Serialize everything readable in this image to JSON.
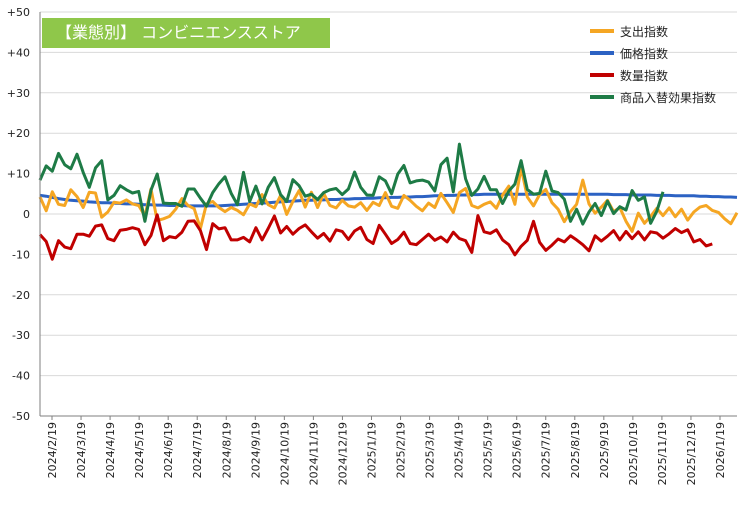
{
  "chart_data": {
    "type": "line",
    "title": "【業態別】 コンビニエンスストア",
    "xlabel": "",
    "ylabel": "",
    "ylim": [
      -50,
      50
    ],
    "y_ticks": [
      "+50",
      "+40",
      "+30",
      "+20",
      "+10",
      "0",
      "-10",
      "-20",
      "-30",
      "-40",
      "-50"
    ],
    "x_ticks": [
      "2024/2/19",
      "2024/3/19",
      "2024/4/19",
      "2024/5/19",
      "2024/6/19",
      "2024/7/19",
      "2024/8/19",
      "2024/9/19",
      "2024/10/19",
      "2024/11/19",
      "2024/12/19",
      "2025/1/19",
      "2025/2/19",
      "2025/3/19",
      "2025/4/19",
      "2025/5/19",
      "2025/6/19",
      "2025/7/19",
      "2025/8/19",
      "2025/9/19",
      "2025/10/19",
      "2025/11/19",
      "2025/12/19",
      "2026/1/19"
    ],
    "grid": true,
    "legend_position": "top-right",
    "series": [
      {
        "name": "支出指数",
        "color": "#f5a623",
        "values": [
          4.2,
          0.8,
          5.5,
          2.4,
          2.1,
          6.0,
          4.3,
          1.6,
          5.4,
          5.2,
          -0.8,
          0.5,
          2.9,
          2.7,
          3.5,
          2.5,
          2.1,
          -0.5,
          6.2,
          -1.6,
          -1.2,
          -0.6,
          1.2,
          3.8,
          2.1,
          1.3,
          -3.6,
          2.5,
          3.1,
          1.6,
          0.6,
          1.6,
          0.9,
          -0.2,
          2.5,
          1.8,
          4.8,
          2.3,
          1.5,
          4.6,
          -0.1,
          3.1,
          5.8,
          1.7,
          5.4,
          1.6,
          5.1,
          2.1,
          1.5,
          3.4,
          2.0,
          1.7,
          2.8,
          0.9,
          2.9,
          2.1,
          5.3,
          1.9,
          1.4,
          4.6,
          3.4,
          1.9,
          0.8,
          2.7,
          1.6,
          5.1,
          2.8,
          0.4,
          5.3,
          6.3,
          2.1,
          1.5,
          2.4,
          3.0,
          1.4,
          4.7,
          6.9,
          2.4,
          11.5,
          4.2,
          2.0,
          4.8,
          6.1,
          2.8,
          1.2,
          -1.9,
          0.6,
          2.4,
          8.4,
          2.5,
          0.2,
          1.7,
          3.4,
          0.6,
          1.6,
          -1.8,
          -4.3,
          0.2,
          -2.3,
          -0.6,
          1.4,
          -0.4,
          1.5,
          -0.7,
          1.2,
          -1.5,
          0.5,
          1.7,
          2.1,
          0.9,
          0.4,
          -1.2,
          -2.4,
          0.3
        ]
      },
      {
        "name": "価格指数",
        "color": "#2c62c3",
        "values": [
          4.6,
          4.4,
          4.1,
          3.8,
          3.6,
          3.4,
          3.3,
          3.2,
          3.0,
          2.9,
          2.8,
          2.8,
          2.7,
          2.6,
          2.5,
          2.5,
          2.4,
          2.3,
          2.3,
          2.2,
          2.2,
          2.1,
          2.1,
          2.1,
          2.0,
          2.0,
          2.0,
          2.0,
          2.0,
          2.0,
          2.1,
          2.2,
          2.3,
          2.4,
          2.5,
          2.6,
          2.7,
          2.8,
          2.9,
          3.0,
          3.1,
          3.2,
          3.3,
          3.4,
          3.4,
          3.5,
          3.5,
          3.6,
          3.6,
          3.7,
          3.7,
          3.8,
          3.8,
          3.9,
          3.9,
          4.0,
          4.0,
          4.1,
          4.1,
          4.2,
          4.2,
          4.3,
          4.3,
          4.4,
          4.5,
          4.5,
          4.6,
          4.6,
          4.7,
          4.7,
          4.8,
          4.8,
          4.9,
          4.9,
          4.9,
          4.9,
          4.9,
          4.9,
          4.9,
          4.9,
          4.9,
          4.9,
          4.9,
          4.9,
          4.9,
          4.9,
          4.9,
          4.9,
          4.9,
          4.9,
          4.9,
          4.9,
          4.9,
          4.8,
          4.8,
          4.8,
          4.7,
          4.7,
          4.7,
          4.7,
          4.6,
          4.6,
          4.6,
          4.5,
          4.5,
          4.5,
          4.5,
          4.4,
          4.4,
          4.3,
          4.3,
          4.2,
          4.2,
          4.1
        ]
      },
      {
        "name": "数量指数",
        "color": "#c00000",
        "values": [
          -5.1,
          -6.8,
          -11.2,
          -6.6,
          -8.2,
          -8.6,
          -5.0,
          -5.0,
          -5.5,
          -3.0,
          -2.7,
          -6.1,
          -6.6,
          -4.0,
          -3.8,
          -3.4,
          -3.8,
          -7.6,
          -5.3,
          -0.2,
          -6.6,
          -5.6,
          -5.9,
          -4.5,
          -1.8,
          -1.7,
          -4.1,
          -8.8,
          -2.4,
          -3.7,
          -3.4,
          -6.4,
          -6.4,
          -5.8,
          -6.9,
          -3.4,
          -6.4,
          -3.6,
          -0.5,
          -4.7,
          -3.1,
          -5.0,
          -3.6,
          -2.7,
          -4.4,
          -6.0,
          -4.8,
          -6.7,
          -3.9,
          -4.3,
          -6.3,
          -4.2,
          -3.3,
          -6.3,
          -7.3,
          -2.8,
          -5.0,
          -7.3,
          -6.3,
          -4.5,
          -7.3,
          -7.6,
          -6.3,
          -5.0,
          -6.5,
          -5.7,
          -6.9,
          -4.5,
          -6.1,
          -6.6,
          -9.5,
          -0.4,
          -4.4,
          -4.8,
          -3.9,
          -6.4,
          -7.6,
          -10.1,
          -8.0,
          -6.5,
          -1.8,
          -7.0,
          -9.0,
          -7.7,
          -6.2,
          -6.9,
          -5.4,
          -6.4,
          -7.6,
          -9.1,
          -5.4,
          -6.7,
          -5.5,
          -4.1,
          -6.4,
          -4.3,
          -6.1,
          -4.4,
          -6.4,
          -4.4,
          -4.7,
          -6.0,
          -4.9,
          -3.6,
          -4.6,
          -3.9,
          -6.9,
          -6.3,
          -7.9,
          -7.4
        ]
      },
      {
        "name": "商品入替効果指数",
        "color": "#1e7b46",
        "values": [
          8.4,
          11.9,
          10.6,
          15.0,
          12.2,
          11.2,
          14.8,
          10.3,
          6.6,
          11.4,
          13.2,
          3.5,
          4.6,
          7.0,
          6.0,
          5.2,
          5.6,
          -1.8,
          5.9,
          9.9,
          2.7,
          2.6,
          2.6,
          1.9,
          6.2,
          6.2,
          3.9,
          1.9,
          5.3,
          7.5,
          9.2,
          5.1,
          2.3,
          10.3,
          3.1,
          6.9,
          2.5,
          6.6,
          9.0,
          4.8,
          3.1,
          8.5,
          7.0,
          4.4,
          4.9,
          3.6,
          5.3,
          6.0,
          6.3,
          4.8,
          6.2,
          10.4,
          6.6,
          4.7,
          4.6,
          9.2,
          8.2,
          5.0,
          9.9,
          12.0,
          7.7,
          8.2,
          8.4,
          7.9,
          5.7,
          12.2,
          13.8,
          5.5,
          17.3,
          8.7,
          4.6,
          6.2,
          9.3,
          6.0,
          6.0,
          2.6,
          5.7,
          7.4,
          13.2,
          6.1,
          4.9,
          5.1,
          10.6,
          5.7,
          5.3,
          3.7,
          -1.8,
          1.2,
          -2.5,
          0.5,
          2.6,
          -0.4,
          3.2,
          0.1,
          1.8,
          1.0,
          5.8,
          3.4,
          4.2,
          -2.3,
          0.7,
          5.5
        ]
      }
    ]
  }
}
